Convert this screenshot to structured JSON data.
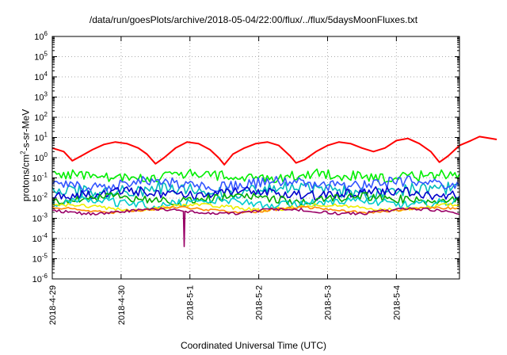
{
  "chart_data": {
    "type": "line",
    "title": "/data/run/goesPlots/archive/2018-05-04/22:00/flux/../flux/5daysMoonFluxes.txt",
    "xlabel": "Coordinated Universal Time (UTC)",
    "ylabel": {
      "prefix": "protons/cm",
      "sup": "2",
      "suffix": "-s-sr-MeV"
    },
    "yscale": "log",
    "ylim": [
      1e-06,
      1000000.0
    ],
    "yticks": [
      {
        "base": "10",
        "exp": "-6",
        "value": 1e-06
      },
      {
        "base": "10",
        "exp": "-5",
        "value": 1e-05
      },
      {
        "base": "10",
        "exp": "-4",
        "value": 0.0001
      },
      {
        "base": "10",
        "exp": "-3",
        "value": 0.001
      },
      {
        "base": "10",
        "exp": "-2",
        "value": 0.01
      },
      {
        "base": "10",
        "exp": "-1",
        "value": 0.1
      },
      {
        "base": "10",
        "exp": "0",
        "value": 1
      },
      {
        "base": "10",
        "exp": "1",
        "value": 10
      },
      {
        "base": "10",
        "exp": "2",
        "value": 100
      },
      {
        "base": "10",
        "exp": "3",
        "value": 1000
      },
      {
        "base": "10",
        "exp": "4",
        "value": 10000
      },
      {
        "base": "10",
        "exp": "5",
        "value": 100000
      },
      {
        "base": "10",
        "exp": "6",
        "value": 1000000
      }
    ],
    "xlim": [
      "2018-04-29T00:00",
      "2018-05-04T22:00"
    ],
    "xticks": [
      "2018-4-29",
      "2018-4-30",
      "2018-5-1",
      "2018-5-2",
      "2018-5-3",
      "2018-5-4"
    ],
    "grid": true,
    "series": [
      {
        "color": "#ff0000",
        "values": [
          {
            "t": "2018-04-29T00:00",
            "y": 3
          },
          {
            "t": "2018-04-29T04:00",
            "y": 2
          },
          {
            "t": "2018-04-29T07:00",
            "y": 0.7
          },
          {
            "t": "2018-04-29T10:00",
            "y": 1.2
          },
          {
            "t": "2018-04-29T14:00",
            "y": 2.5
          },
          {
            "t": "2018-04-29T18:00",
            "y": 4.5
          },
          {
            "t": "2018-04-29T22:00",
            "y": 6
          },
          {
            "t": "2018-04-30T02:00",
            "y": 5
          },
          {
            "t": "2018-04-30T06:00",
            "y": 3
          },
          {
            "t": "2018-04-30T09:00",
            "y": 1.5
          },
          {
            "t": "2018-04-30T12:00",
            "y": 0.5
          },
          {
            "t": "2018-04-30T15:00",
            "y": 1
          },
          {
            "t": "2018-04-30T19:00",
            "y": 3
          },
          {
            "t": "2018-04-30T23:00",
            "y": 6
          },
          {
            "t": "2018-05-01T03:00",
            "y": 5
          },
          {
            "t": "2018-05-01T07:00",
            "y": 2.5
          },
          {
            "t": "2018-05-01T10:00",
            "y": 1
          },
          {
            "t": "2018-05-01T12:00",
            "y": 0.45
          },
          {
            "t": "2018-05-01T15:00",
            "y": 1.5
          },
          {
            "t": "2018-05-01T19:00",
            "y": 3
          },
          {
            "t": "2018-05-01T23:00",
            "y": 5
          },
          {
            "t": "2018-05-02T03:00",
            "y": 6
          },
          {
            "t": "2018-05-02T07:00",
            "y": 4
          },
          {
            "t": "2018-05-02T11:00",
            "y": 1.2
          },
          {
            "t": "2018-05-02T13:00",
            "y": 0.55
          },
          {
            "t": "2018-05-02T16:00",
            "y": 0.8
          },
          {
            "t": "2018-05-02T20:00",
            "y": 2
          },
          {
            "t": "2018-05-03T00:00",
            "y": 4
          },
          {
            "t": "2018-05-03T04:00",
            "y": 6
          },
          {
            "t": "2018-05-03T08:00",
            "y": 5
          },
          {
            "t": "2018-05-03T12:00",
            "y": 3
          },
          {
            "t": "2018-05-03T16:00",
            "y": 2
          },
          {
            "t": "2018-05-03T20:00",
            "y": 3
          },
          {
            "t": "2018-05-04T00:00",
            "y": 7
          },
          {
            "t": "2018-05-04T04:00",
            "y": 9
          },
          {
            "t": "2018-05-04T08:00",
            "y": 5
          },
          {
            "t": "2018-05-04T12:00",
            "y": 2
          },
          {
            "t": "2018-05-04T15:00",
            "y": 0.6
          },
          {
            "t": "2018-05-04T18:00",
            "y": 1.2
          },
          {
            "t": "2018-05-04T22:00",
            "y": 4
          },
          {
            "t": "2018-05-05T02:00",
            "y": 7
          },
          {
            "t": "2018-05-05T05:00",
            "y": 11
          },
          {
            "t": "2018-05-05T09:00",
            "y": 9
          },
          {
            "t": "2018-05-05T11:00",
            "y": 8
          }
        ]
      },
      {
        "color": "#00ee00",
        "base": 0.12,
        "noise": 0.45
      },
      {
        "color": "#00bbbb",
        "base": 0.025,
        "noise": 0.55
      },
      {
        "color": "#3355ff",
        "base": 0.05,
        "noise": 0.45
      },
      {
        "color": "#0000cc",
        "base": 0.017,
        "noise": 0.4
      },
      {
        "color": "#00aa00",
        "base": 0.009,
        "noise": 0.35
      },
      {
        "color": "#00cccc",
        "base": 0.006,
        "noise": 0.35
      },
      {
        "color": "#eeee00",
        "base": 0.0035,
        "noise": 0.15
      },
      {
        "color": "#ff8800",
        "base": 0.0026,
        "noise": 0.1
      },
      {
        "color": "#990066",
        "base": 0.0022,
        "noise": 0.12,
        "spike": {
          "t": "2018-04-30T22:00",
          "y": 4e-05
        }
      }
    ]
  }
}
